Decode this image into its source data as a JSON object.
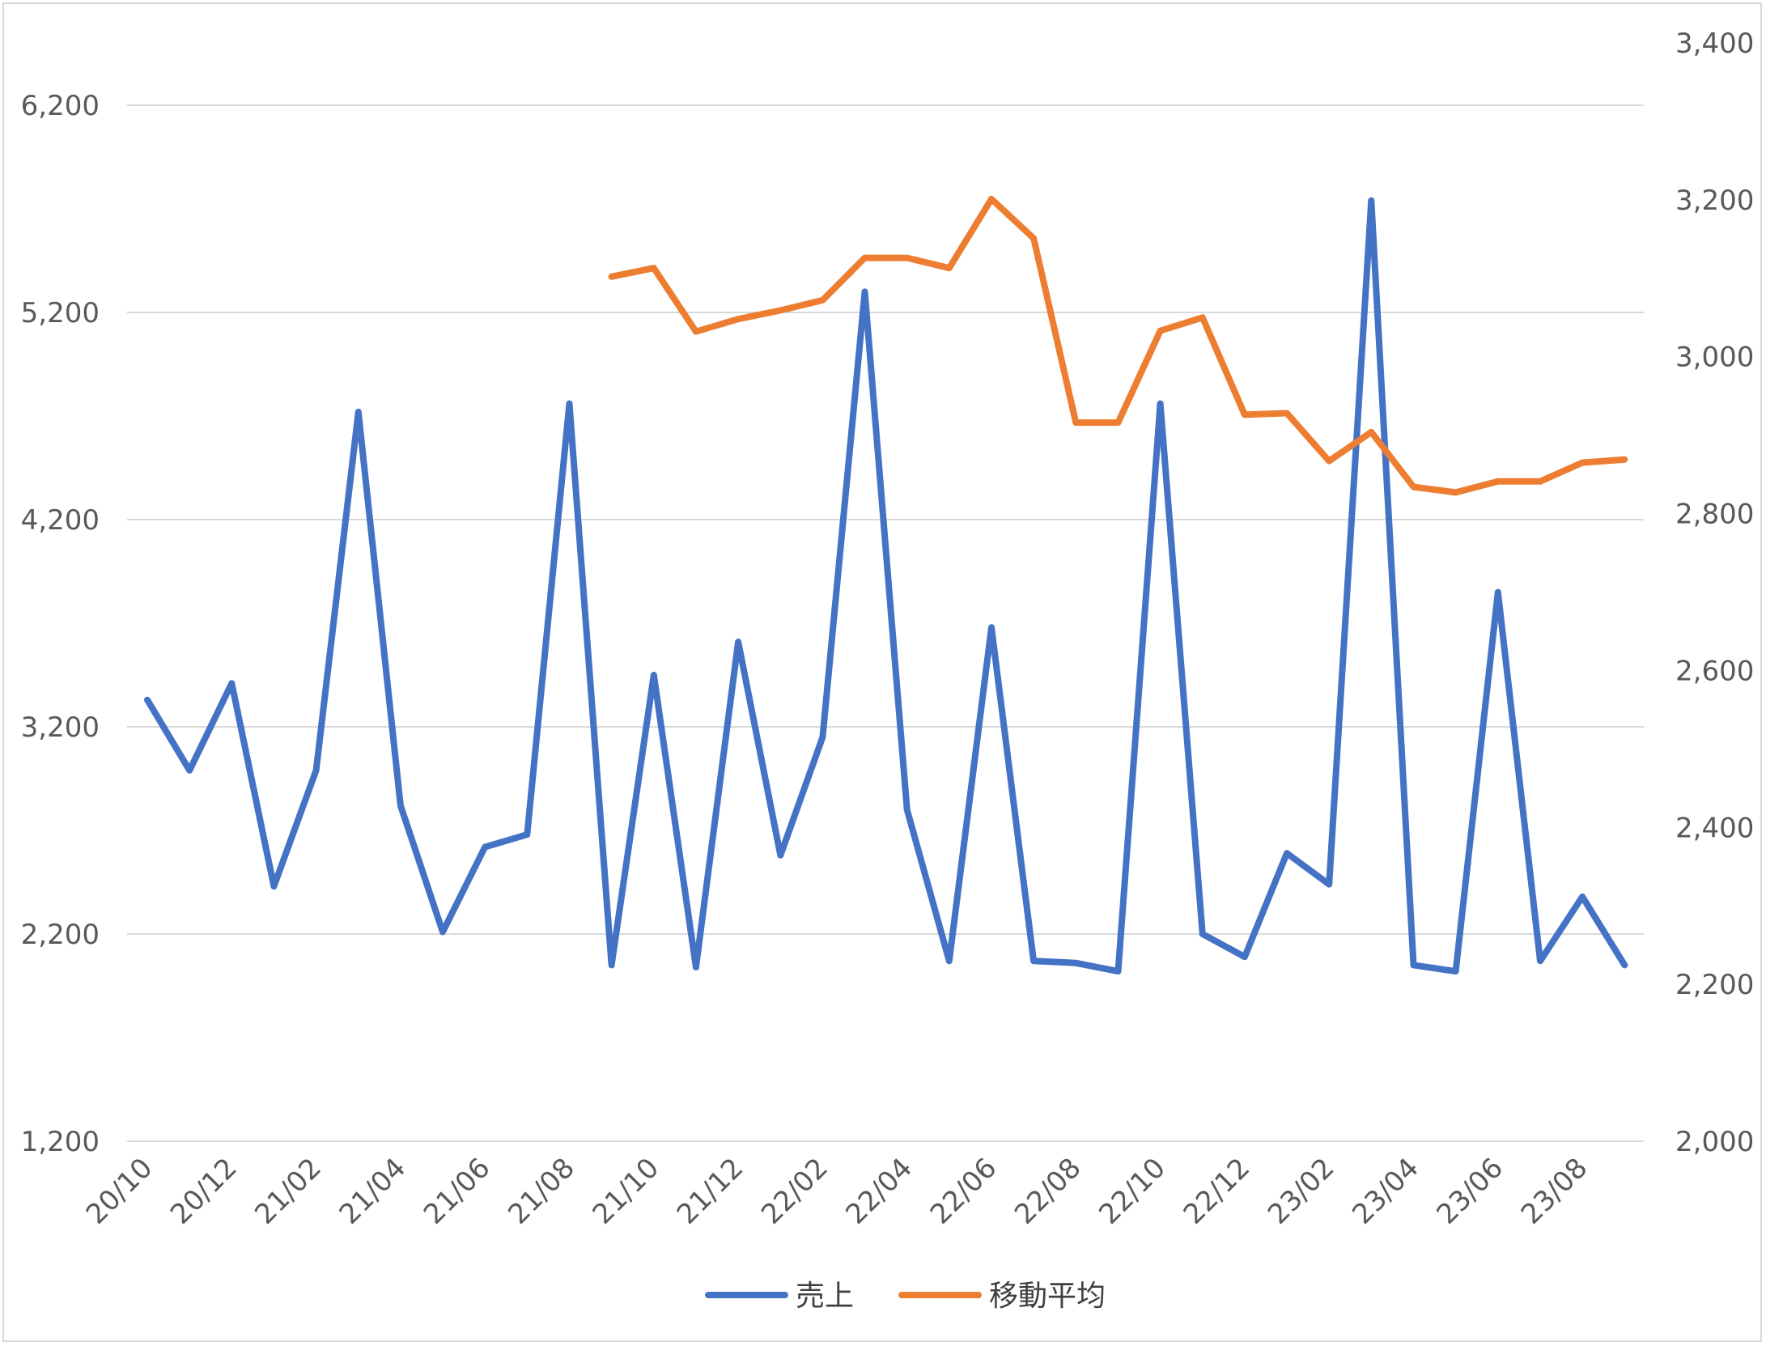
{
  "chart_data": {
    "type": "line",
    "title": "",
    "xlabel": "",
    "ylabel": "",
    "categories": [
      "20/10",
      "20/11",
      "20/12",
      "21/01",
      "21/02",
      "21/03",
      "21/04",
      "21/05",
      "21/06",
      "21/07",
      "21/08",
      "21/09",
      "21/10",
      "21/11",
      "21/12",
      "22/01",
      "22/02",
      "22/03",
      "22/04",
      "22/05",
      "22/06",
      "22/07",
      "22/08",
      "22/09",
      "22/10",
      "22/11",
      "22/12",
      "23/01",
      "23/02",
      "23/03",
      "23/04",
      "23/05",
      "23/06",
      "23/07",
      "23/08",
      "23/09"
    ],
    "x_tick_labels": [
      "20/10",
      "20/12",
      "21/02",
      "21/04",
      "21/06",
      "21/08",
      "21/10",
      "21/12",
      "22/02",
      "22/04",
      "22/06",
      "22/08",
      "22/10",
      "22/12",
      "23/02",
      "23/04",
      "23/06",
      "23/08"
    ],
    "y_left": {
      "ylim": [
        1200,
        6200
      ],
      "ticks": [
        1200,
        2200,
        3200,
        4200,
        5200,
        6200
      ],
      "tick_labels": [
        "1,200",
        "2,200",
        "3,200",
        "4,200",
        "5,200",
        "6,200"
      ]
    },
    "y_right": {
      "ylim": [
        2000,
        3400
      ],
      "ticks": [
        2000,
        2200,
        2400,
        2600,
        2800,
        3000,
        3200,
        3400
      ],
      "tick_labels": [
        "2,000",
        "2,200",
        "2,400",
        "2,600",
        "2,800",
        "3,000",
        "3,200",
        "3,400"
      ]
    },
    "grid": true,
    "legend_position": "bottom",
    "series": [
      {
        "name": "売上",
        "axis": "left",
        "color": "#4472c4",
        "values": [
          3330,
          2990,
          3410,
          2430,
          2990,
          4720,
          2820,
          2210,
          2620,
          2680,
          4760,
          2050,
          3450,
          2040,
          3610,
          2580,
          3150,
          5300,
          2800,
          2070,
          3680,
          2070,
          2060,
          2020,
          4760,
          2200,
          2090,
          2590,
          2440,
          5740,
          2050,
          2020,
          3850,
          2070,
          2380,
          2050
        ]
      },
      {
        "name": "移動平均",
        "axis": "right",
        "color": "#ed7d31",
        "values": [
          null,
          null,
          null,
          null,
          null,
          null,
          null,
          null,
          null,
          null,
          null,
          3102,
          3113,
          3032,
          3048,
          3059,
          3072,
          3126,
          3126,
          3113,
          3201,
          3151,
          2916,
          2916,
          3033,
          3050,
          2926,
          2928,
          2867,
          2904,
          2834,
          2827,
          2841,
          2841,
          2865,
          2869
        ]
      }
    ]
  }
}
